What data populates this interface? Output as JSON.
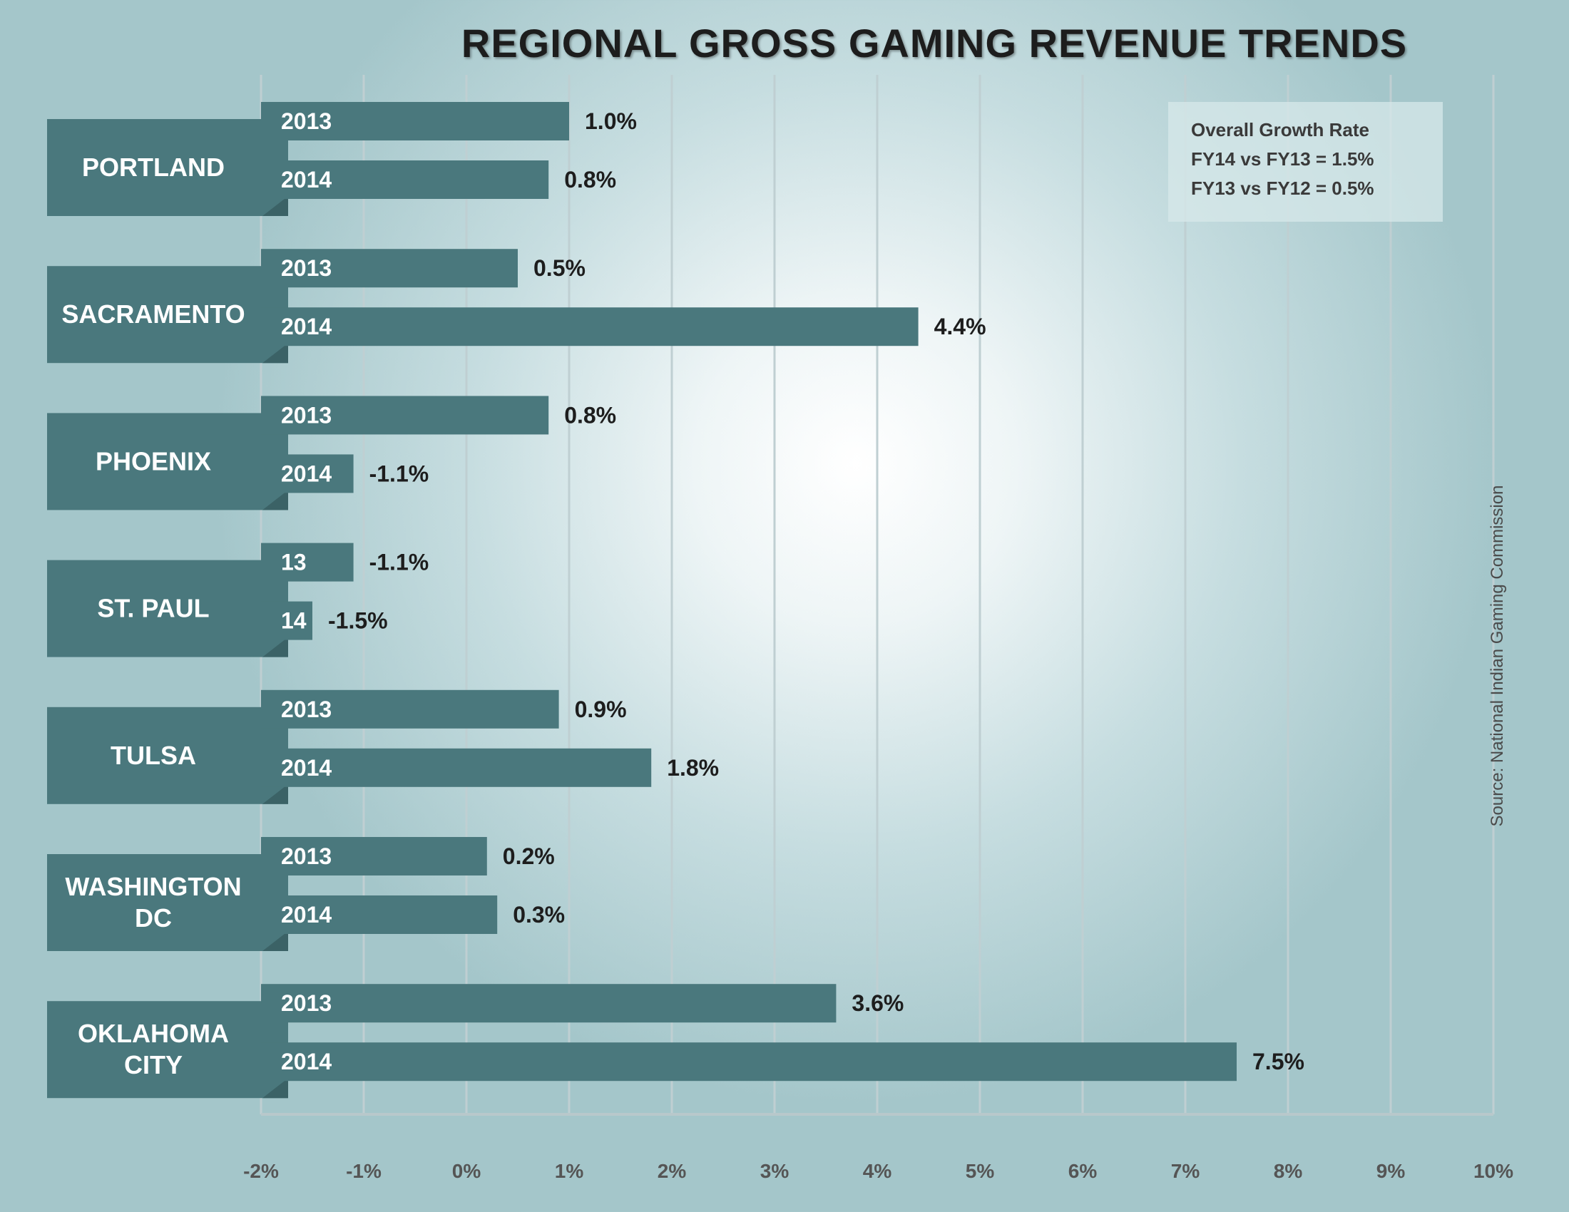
{
  "chart_data": {
    "type": "bar",
    "orientation": "horizontal",
    "title": "REGIONAL GROSS GAMING REVENUE TRENDS",
    "xlim": [
      -2,
      10
    ],
    "x_ticks": [
      "-2%",
      "-1%",
      "0%",
      "1%",
      "2%",
      "3%",
      "4%",
      "5%",
      "6%",
      "7%",
      "8%",
      "9%",
      "10%"
    ],
    "grid": true,
    "groups": [
      {
        "city": [
          "PORTLAND"
        ],
        "bars": [
          {
            "year": "2013",
            "value": 1.0,
            "label": "1.0%"
          },
          {
            "year": "2014",
            "value": 0.8,
            "label": "0.8%"
          }
        ]
      },
      {
        "city": [
          "SACRAMENTO"
        ],
        "bars": [
          {
            "year": "2013",
            "value": 0.5,
            "label": "0.5%"
          },
          {
            "year": "2014",
            "value": 4.4,
            "label": "4.4%"
          }
        ]
      },
      {
        "city": [
          "PHOENIX"
        ],
        "bars": [
          {
            "year": "2013",
            "value": 0.8,
            "label": "0.8%"
          },
          {
            "year": "2014",
            "value": -1.1,
            "label": "-1.1%"
          }
        ]
      },
      {
        "city": [
          "ST. PAUL"
        ],
        "bars": [
          {
            "year": "13",
            "value": -1.1,
            "label": "-1.1%"
          },
          {
            "year": "14",
            "value": -1.5,
            "label": "-1.5%"
          }
        ]
      },
      {
        "city": [
          "TULSA"
        ],
        "bars": [
          {
            "year": "2013",
            "value": 0.9,
            "label": "0.9%"
          },
          {
            "year": "2014",
            "value": 1.8,
            "label": "1.8%"
          }
        ]
      },
      {
        "city": [
          "WASHINGTON",
          "DC"
        ],
        "bars": [
          {
            "year": "2013",
            "value": 0.2,
            "label": "0.2%"
          },
          {
            "year": "2014",
            "value": 0.3,
            "label": "0.3%"
          }
        ]
      },
      {
        "city": [
          "OKLAHOMA",
          "CITY"
        ],
        "bars": [
          {
            "year": "2013",
            "value": 3.6,
            "label": "3.6%"
          },
          {
            "year": "2014",
            "value": 7.5,
            "label": "7.5%"
          }
        ]
      }
    ],
    "legend": {
      "title": "Overall Growth Rate",
      "lines": [
        "FY14 vs FY13 = 1.5%",
        "FY13 vs FY12 = 0.5%"
      ],
      "position": "top-right"
    },
    "source": "Source: National Indian Gaming Commission",
    "colors": {
      "bar": "#4a787d",
      "grid": "#bfcfd2",
      "axis": "#b8c8cb"
    }
  }
}
